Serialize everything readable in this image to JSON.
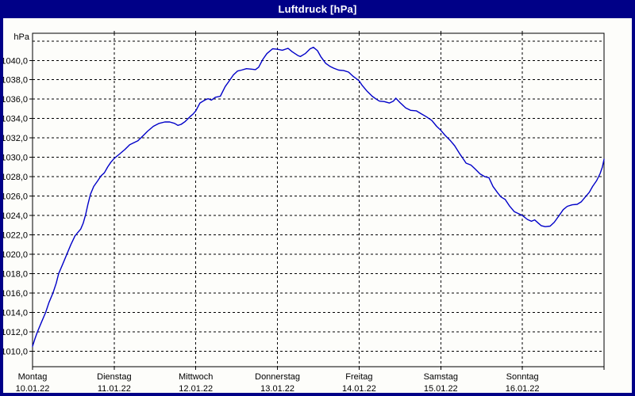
{
  "window": {
    "title": "Luftdruck [hPa]",
    "titlebar_color": "#000087",
    "border_color": "#000087",
    "background_color": "#fdfdfa"
  },
  "chart_data": {
    "type": "line",
    "title": "Luftdruck [hPa]",
    "ylabel": "hPa",
    "unit_label": "hPa",
    "grid": true,
    "legend_position": "none",
    "line_color": "#0000c8",
    "gridline_color": "#000000",
    "y_axis": {
      "ylim": [
        1008.4,
        1042.8
      ],
      "gridline_values": [
        1042,
        1040,
        1038,
        1036,
        1034,
        1032,
        1030,
        1028,
        1026,
        1024,
        1022,
        1020,
        1018,
        1016,
        1014,
        1012,
        1010
      ],
      "tick_labels": [
        {
          "value": 1040,
          "label": "1040,0"
        },
        {
          "value": 1038,
          "label": "1038,0"
        },
        {
          "value": 1036,
          "label": "1036,0"
        },
        {
          "value": 1034,
          "label": "1034,0"
        },
        {
          "value": 1032,
          "label": "1032,0"
        },
        {
          "value": 1030,
          "label": "1030,0"
        },
        {
          "value": 1028,
          "label": "1028,0"
        },
        {
          "value": 1026,
          "label": "1026,0"
        },
        {
          "value": 1024,
          "label": "1024,0"
        },
        {
          "value": 1022,
          "label": "1022,0"
        },
        {
          "value": 1020,
          "label": "1020,0"
        },
        {
          "value": 1018,
          "label": "1018,0"
        },
        {
          "value": 1016,
          "label": "1016,0"
        },
        {
          "value": 1014,
          "label": "1014,0"
        },
        {
          "value": 1012,
          "label": "1012,0"
        },
        {
          "value": 1010,
          "label": "1010,0"
        }
      ]
    },
    "x_axis": {
      "xlim_days": [
        0,
        7
      ],
      "day_labels": [
        {
          "name": "Montag",
          "date": "10.01.22"
        },
        {
          "name": "Dienstag",
          "date": "11.01.22"
        },
        {
          "name": "Mittwoch",
          "date": "12.01.22"
        },
        {
          "name": "Donnerstag",
          "date": "13.01.22"
        },
        {
          "name": "Freitag",
          "date": "14.01.22"
        },
        {
          "name": "Samstag",
          "date": "15.01.22"
        },
        {
          "name": "Sonntag",
          "date": "16.01.22"
        }
      ]
    },
    "series": [
      {
        "name": "Luftdruck",
        "color": "#0000c8",
        "unit": "hPa",
        "points_day_hpa": [
          [
            0.0,
            1010.5
          ],
          [
            0.03,
            1011.3
          ],
          [
            0.06,
            1012.0
          ],
          [
            0.11,
            1013.0
          ],
          [
            0.16,
            1014.0
          ],
          [
            0.2,
            1015.0
          ],
          [
            0.25,
            1016.0
          ],
          [
            0.29,
            1017.0
          ],
          [
            0.32,
            1018.0
          ],
          [
            0.37,
            1019.0
          ],
          [
            0.42,
            1020.0
          ],
          [
            0.47,
            1021.0
          ],
          [
            0.52,
            1021.9
          ],
          [
            0.55,
            1022.2
          ],
          [
            0.59,
            1022.6
          ],
          [
            0.62,
            1023.2
          ],
          [
            0.65,
            1024.1
          ],
          [
            0.68,
            1025.2
          ],
          [
            0.71,
            1026.2
          ],
          [
            0.75,
            1027.0
          ],
          [
            0.8,
            1027.6
          ],
          [
            0.84,
            1028.1
          ],
          [
            0.88,
            1028.4
          ],
          [
            0.92,
            1029.0
          ],
          [
            0.96,
            1029.5
          ],
          [
            1.0,
            1029.9
          ],
          [
            1.06,
            1030.3
          ],
          [
            1.13,
            1030.8
          ],
          [
            1.19,
            1031.3
          ],
          [
            1.24,
            1031.5
          ],
          [
            1.29,
            1031.7
          ],
          [
            1.35,
            1032.2
          ],
          [
            1.41,
            1032.7
          ],
          [
            1.48,
            1033.2
          ],
          [
            1.55,
            1033.5
          ],
          [
            1.62,
            1033.65
          ],
          [
            1.68,
            1033.65
          ],
          [
            1.74,
            1033.5
          ],
          [
            1.78,
            1033.3
          ],
          [
            1.82,
            1033.4
          ],
          [
            1.87,
            1033.7
          ],
          [
            1.93,
            1034.2
          ],
          [
            1.97,
            1034.5
          ],
          [
            2.0,
            1034.8
          ],
          [
            2.05,
            1035.6
          ],
          [
            2.11,
            1035.9
          ],
          [
            2.15,
            1036.05
          ],
          [
            2.19,
            1035.9
          ],
          [
            2.24,
            1036.2
          ],
          [
            2.3,
            1036.3
          ],
          [
            2.36,
            1037.3
          ],
          [
            2.41,
            1037.9
          ],
          [
            2.46,
            1038.5
          ],
          [
            2.51,
            1038.9
          ],
          [
            2.56,
            1039.0
          ],
          [
            2.62,
            1039.15
          ],
          [
            2.68,
            1039.1
          ],
          [
            2.73,
            1039.05
          ],
          [
            2.77,
            1039.3
          ],
          [
            2.82,
            1040.1
          ],
          [
            2.87,
            1040.7
          ],
          [
            2.94,
            1041.2
          ],
          [
            3.0,
            1041.15
          ],
          [
            3.06,
            1041.05
          ],
          [
            3.13,
            1041.25
          ],
          [
            3.18,
            1040.9
          ],
          [
            3.25,
            1040.5
          ],
          [
            3.28,
            1040.4
          ],
          [
            3.34,
            1040.7
          ],
          [
            3.4,
            1041.2
          ],
          [
            3.44,
            1041.35
          ],
          [
            3.49,
            1041.0
          ],
          [
            3.53,
            1040.4
          ],
          [
            3.59,
            1039.7
          ],
          [
            3.64,
            1039.4
          ],
          [
            3.69,
            1039.2
          ],
          [
            3.75,
            1039.0
          ],
          [
            3.81,
            1038.95
          ],
          [
            3.87,
            1038.8
          ],
          [
            3.92,
            1038.4
          ],
          [
            4.0,
            1037.9
          ],
          [
            4.04,
            1037.4
          ],
          [
            4.1,
            1036.8
          ],
          [
            4.16,
            1036.3
          ],
          [
            4.21,
            1036.0
          ],
          [
            4.25,
            1035.8
          ],
          [
            4.31,
            1035.75
          ],
          [
            4.37,
            1035.6
          ],
          [
            4.42,
            1035.8
          ],
          [
            4.45,
            1036.1
          ],
          [
            4.5,
            1035.65
          ],
          [
            4.57,
            1035.1
          ],
          [
            4.63,
            1034.85
          ],
          [
            4.7,
            1034.8
          ],
          [
            4.76,
            1034.5
          ],
          [
            4.82,
            1034.2
          ],
          [
            4.89,
            1033.8
          ],
          [
            4.95,
            1033.2
          ],
          [
            5.0,
            1032.8
          ],
          [
            5.05,
            1032.3
          ],
          [
            5.12,
            1031.7
          ],
          [
            5.17,
            1031.2
          ],
          [
            5.23,
            1030.4
          ],
          [
            5.27,
            1029.9
          ],
          [
            5.31,
            1029.4
          ],
          [
            5.37,
            1029.2
          ],
          [
            5.42,
            1028.8
          ],
          [
            5.48,
            1028.3
          ],
          [
            5.54,
            1028.0
          ],
          [
            5.59,
            1027.9
          ],
          [
            5.64,
            1027.0
          ],
          [
            5.7,
            1026.3
          ],
          [
            5.74,
            1025.9
          ],
          [
            5.79,
            1025.65
          ],
          [
            5.84,
            1025.0
          ],
          [
            5.9,
            1024.4
          ],
          [
            5.95,
            1024.2
          ],
          [
            6.0,
            1024.0
          ],
          [
            6.06,
            1023.6
          ],
          [
            6.11,
            1023.4
          ],
          [
            6.15,
            1023.55
          ],
          [
            6.19,
            1023.25
          ],
          [
            6.23,
            1022.95
          ],
          [
            6.28,
            1022.85
          ],
          [
            6.34,
            1022.9
          ],
          [
            6.39,
            1023.3
          ],
          [
            6.45,
            1024.0
          ],
          [
            6.5,
            1024.6
          ],
          [
            6.55,
            1024.95
          ],
          [
            6.61,
            1025.1
          ],
          [
            6.67,
            1025.15
          ],
          [
            6.72,
            1025.4
          ],
          [
            6.77,
            1025.9
          ],
          [
            6.82,
            1026.4
          ],
          [
            6.86,
            1027.0
          ],
          [
            6.91,
            1027.6
          ],
          [
            6.95,
            1028.3
          ],
          [
            6.98,
            1029.0
          ],
          [
            7.0,
            1029.8
          ]
        ]
      }
    ]
  }
}
